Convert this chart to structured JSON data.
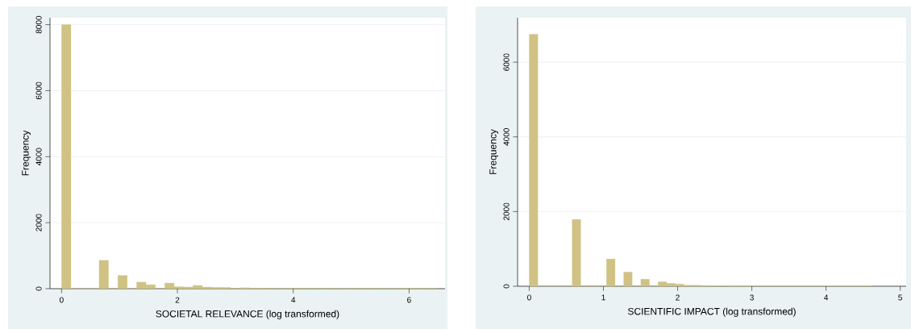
{
  "chart_data": [
    {
      "type": "histogram",
      "xlabel": "SOCIETAL RELEVANCE (log transformed)",
      "ylabel": "Frequency",
      "color": "#cfc283",
      "bins": [
        0,
        0.162,
        0.324,
        0.486,
        0.648,
        0.81,
        0.972,
        1.134,
        1.296,
        1.458,
        1.62,
        1.782,
        1.944,
        2.106,
        2.268,
        2.43,
        2.592,
        2.754,
        2.916,
        3.078,
        3.24,
        3.402,
        3.564,
        3.726,
        3.888,
        4.05,
        4.212,
        4.374,
        4.536,
        4.698,
        4.86,
        5.022,
        5.184,
        5.346,
        5.508,
        5.67,
        5.832,
        5.994,
        6.156,
        6.318,
        6.48
      ],
      "values": [
        8000,
        0,
        0,
        0,
        860,
        0,
        400,
        0,
        200,
        120,
        0,
        170,
        60,
        50,
        100,
        50,
        40,
        40,
        10,
        30,
        20,
        20,
        10,
        10,
        10,
        10,
        10,
        10,
        10,
        10,
        10,
        10,
        10,
        10,
        10,
        10,
        10,
        10,
        10,
        10
      ],
      "xlim": [
        -0.2,
        6.62
      ],
      "ylim": [
        0,
        8210
      ],
      "xticks": [
        0,
        2,
        4,
        6
      ],
      "yticks": [
        0,
        2000,
        4000,
        6000,
        8000
      ],
      "grid": "y"
    },
    {
      "type": "histogram",
      "xlabel": "SCIENTIFIC IMPACT (log transformed)",
      "ylabel": "Frequency",
      "color": "#cfc283",
      "bins": [
        0,
        0.116,
        0.231,
        0.347,
        0.463,
        0.579,
        0.694,
        0.81,
        0.926,
        1.041,
        1.157,
        1.273,
        1.388,
        1.504,
        1.62,
        1.736,
        1.851,
        1.967,
        2.083,
        2.198,
        2.314,
        2.43,
        2.545,
        2.661,
        2.777,
        2.893,
        3.008,
        3.124,
        3.24,
        3.355,
        3.471,
        3.587,
        3.702,
        3.818,
        3.934,
        4.05,
        4.165,
        4.281,
        4.397,
        4.512,
        4.628
      ],
      "values": [
        6750,
        0,
        0,
        0,
        0,
        1790,
        0,
        0,
        0,
        730,
        0,
        380,
        0,
        190,
        0,
        120,
        80,
        60,
        30,
        30,
        20,
        20,
        10,
        20,
        20,
        20,
        10,
        10,
        10,
        10,
        10,
        10,
        10,
        10,
        10,
        10,
        10,
        10,
        10,
        10
      ],
      "xlim": [
        -0.157,
        5.08
      ],
      "ylim": [
        0,
        7190
      ],
      "xticks": [
        0,
        1,
        2,
        3,
        4,
        5
      ],
      "yticks": [
        0,
        2000,
        4000,
        6000
      ],
      "grid": "y"
    }
  ]
}
